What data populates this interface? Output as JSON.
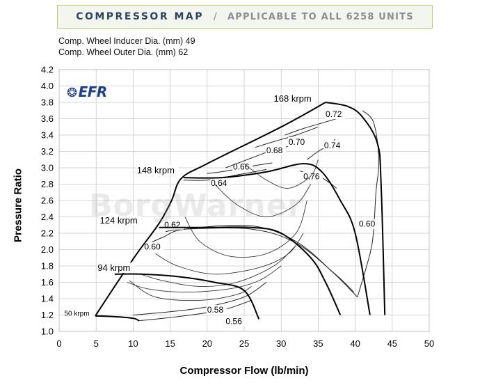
{
  "header": {
    "title_left": "COMPRESSOR MAP",
    "separator": "/",
    "title_right": "APPLICABLE TO ALL 6258  UNITS"
  },
  "specs": {
    "inducer": "Comp. Wheel Inducer Dia. (mm) 49",
    "outer": "Comp. Wheel Outer Dia. (mm) 62"
  },
  "logo_text": "EFR",
  "watermark_text": "BorgWarner",
  "chart_data": {
    "type": "line",
    "xlabel": "Compressor Flow (lb/min)",
    "ylabel": "Pressure Ratio",
    "xlim": [
      0,
      50
    ],
    "ylim": [
      1.0,
      4.2
    ],
    "x_ticks": [
      0,
      5,
      10,
      15,
      20,
      25,
      30,
      35,
      40,
      45,
      50
    ],
    "y_ticks": [
      1.0,
      1.2,
      1.4,
      1.6,
      1.8,
      2.0,
      2.2,
      2.4,
      2.6,
      2.8,
      3.0,
      3.2,
      3.4,
      3.6,
      3.8,
      4.0,
      4.2
    ],
    "grid": true,
    "surge_line": [
      [
        4.9,
        1.19
      ],
      [
        7.5,
        1.55
      ],
      [
        10.5,
        1.95
      ],
      [
        13.5,
        2.32
      ],
      [
        15.2,
        2.6
      ],
      [
        16.5,
        2.87
      ],
      [
        20,
        3.05
      ],
      [
        30,
        3.5
      ],
      [
        36,
        3.8
      ]
    ],
    "speed_lines": [
      {
        "label": "50 krpm",
        "points": [
          [
            4.9,
            1.19
          ],
          [
            7.5,
            1.18
          ],
          [
            10,
            1.16
          ],
          [
            10.8,
            1.13
          ]
        ]
      },
      {
        "label": "94 krpm",
        "points": [
          [
            7.5,
            1.7
          ],
          [
            11,
            1.7
          ],
          [
            16,
            1.67
          ],
          [
            21,
            1.6
          ],
          [
            25,
            1.5
          ],
          [
            27,
            1.15
          ]
        ]
      },
      {
        "label": "124 krpm",
        "points": [
          [
            13.5,
            2.27
          ],
          [
            20,
            2.27
          ],
          [
            26,
            2.27
          ],
          [
            30,
            2.2
          ],
          [
            34,
            1.9
          ],
          [
            36,
            1.6
          ],
          [
            38,
            1.2
          ]
        ]
      },
      {
        "label": "148 krpm",
        "points": [
          [
            16.8,
            2.88
          ],
          [
            22,
            2.88
          ],
          [
            28,
            2.95
          ],
          [
            33,
            3.05
          ],
          [
            35.5,
            2.95
          ],
          [
            38,
            2.6
          ],
          [
            40,
            2.2
          ],
          [
            42,
            1.2
          ]
        ]
      },
      {
        "label": "168 krpm",
        "points": [
          [
            36,
            3.8
          ],
          [
            39,
            3.75
          ],
          [
            41,
            3.62
          ],
          [
            43,
            3.3
          ],
          [
            43.5,
            2.8
          ],
          [
            44,
            1.2
          ]
        ]
      }
    ],
    "efficiency_islands": [
      {
        "label": "0.56",
        "points": [
          [
            10.8,
            1.13
          ],
          [
            16,
            1.18
          ],
          [
            22,
            1.26
          ],
          [
            26,
            1.38
          ]
        ]
      },
      {
        "label": "0.58",
        "points": [
          [
            10,
            1.2
          ],
          [
            15,
            1.24
          ],
          [
            20,
            1.3
          ],
          [
            25,
            1.42
          ],
          [
            28,
            1.6
          ]
        ]
      },
      {
        "label": "0.60",
        "points": [
          [
            11.5,
            2.05
          ],
          [
            14,
            2.15
          ],
          [
            17,
            2.25
          ],
          [
            26,
            2.29
          ],
          [
            32,
            2.1
          ],
          [
            37,
            1.72
          ],
          [
            40.3,
            1.42
          ]
        ]
      },
      {
        "label": "0.60",
        "points": [
          [
            40.3,
            1.42
          ],
          [
            42,
            1.95
          ],
          [
            42.5,
            2.25
          ],
          [
            42.8,
            2.7
          ],
          [
            43.2,
            3.1
          ],
          [
            42.5,
            3.55
          ],
          [
            41,
            3.7
          ]
        ]
      },
      {
        "label": "0.62",
        "points": [
          [
            14.4,
            2.22
          ],
          [
            17,
            2.25
          ],
          [
            26,
            2.25
          ],
          [
            32,
            2.08
          ],
          [
            37.3,
            1.7
          ],
          [
            39.8,
            1.48
          ]
        ]
      },
      {
        "label": "0.64",
        "points": [
          [
            16.8,
            2.85
          ],
          [
            20,
            2.85
          ],
          [
            24.5,
            2.92
          ],
          [
            28,
            2.98
          ]
        ]
      },
      {
        "label": "0.66",
        "points": [
          [
            20,
            2.93
          ],
          [
            22.5,
            2.96
          ],
          [
            26,
            3.02
          ],
          [
            28.8,
            3.06
          ]
        ]
      },
      {
        "label": "0.68",
        "points": [
          [
            22.5,
            3.0
          ],
          [
            26,
            3.12
          ],
          [
            29,
            3.22
          ],
          [
            32,
            3.28
          ]
        ]
      },
      {
        "label": "0.70",
        "points": [
          [
            26.5,
            3.25
          ],
          [
            29,
            3.32
          ],
          [
            32,
            3.4
          ],
          [
            35,
            3.5
          ]
        ]
      },
      {
        "label": "0.72",
        "points": [
          [
            30.5,
            3.4
          ],
          [
            33,
            3.48
          ],
          [
            36,
            3.56
          ],
          [
            37.5,
            3.6
          ]
        ]
      },
      {
        "label": "0.74",
        "points": [
          [
            33.5,
            3.1
          ],
          [
            35,
            3.2
          ],
          [
            36.5,
            3.28
          ],
          [
            37.3,
            3.35
          ]
        ]
      },
      {
        "label": "0.76",
        "points": [
          [
            32.5,
            2.96
          ],
          [
            34.5,
            2.92
          ],
          [
            36,
            2.85
          ],
          [
            37.5,
            2.75
          ]
        ]
      }
    ]
  }
}
